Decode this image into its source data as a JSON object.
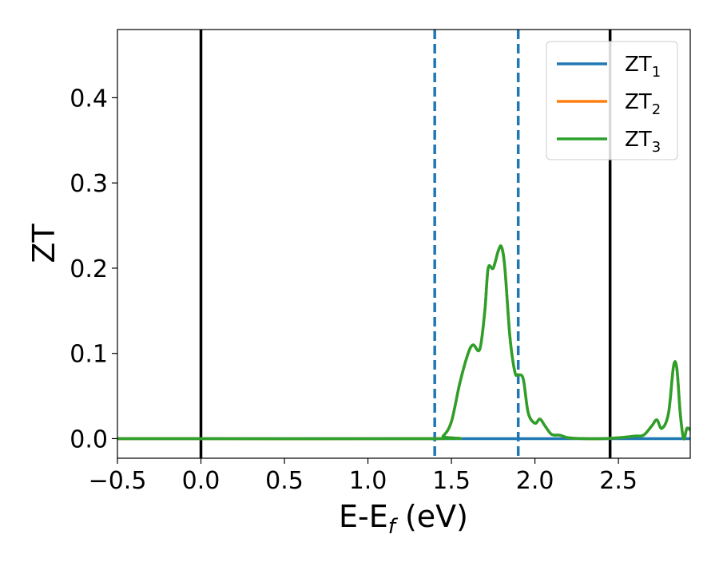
{
  "chart_data": {
    "type": "line",
    "title": "",
    "xlabel": "E-E",
    "xlabel_sub": "f",
    "xlabel_unit": " (eV)",
    "ylabel": "ZT",
    "xlim": [
      -0.5,
      2.93
    ],
    "ylim": [
      -0.023,
      0.48
    ],
    "xticks": [
      -0.5,
      0.0,
      0.5,
      1.0,
      1.5,
      2.0,
      2.5
    ],
    "xtick_labels": [
      "−0.5",
      "0.0",
      "0.5",
      "1.0",
      "1.5",
      "2.0",
      "2.5"
    ],
    "yticks": [
      0.0,
      0.1,
      0.2,
      0.3,
      0.4
    ],
    "ytick_labels": [
      "0.0",
      "0.1",
      "0.2",
      "0.3",
      "0.4"
    ],
    "grid": false,
    "legend_position": "top-right",
    "vlines": [
      {
        "x": 0.0,
        "style": "solid",
        "color": "#000000"
      },
      {
        "x": 2.45,
        "style": "solid",
        "color": "#000000"
      },
      {
        "x": 1.4,
        "style": "dashed",
        "color": "#1f77b4"
      },
      {
        "x": 1.9,
        "style": "dashed",
        "color": "#1f77b4"
      }
    ],
    "series": [
      {
        "name": "ZT",
        "sub": "1",
        "color": "#1f77b4",
        "x": [
          -0.5,
          2.93
        ],
        "y": [
          0.0,
          0.0
        ]
      },
      {
        "name": "ZT",
        "sub": "2",
        "color": "#ff7f0e",
        "x": [
          -0.5,
          1.4,
          1.45,
          1.5,
          1.55,
          1.6,
          1.63,
          1.67,
          1.7,
          1.72,
          1.75,
          1.78,
          1.8,
          1.82,
          1.85,
          1.88,
          1.9,
          1.93,
          1.96,
          2.0,
          2.03,
          2.06,
          2.1,
          2.15,
          2.2,
          2.3,
          2.4,
          2.5,
          2.6,
          2.65,
          2.7,
          2.73,
          2.76,
          2.8,
          2.83,
          2.85,
          2.87,
          2.89,
          2.91,
          2.93
        ],
        "y": [
          0.0,
          0.0,
          0.003,
          0.02,
          0.065,
          0.1,
          0.11,
          0.105,
          0.15,
          0.2,
          0.2,
          0.22,
          0.225,
          0.2,
          0.12,
          0.078,
          0.075,
          0.07,
          0.03,
          0.018,
          0.023,
          0.015,
          0.005,
          0.004,
          0.001,
          0.0,
          0.0,
          0.001,
          0.003,
          0.004,
          0.015,
          0.022,
          0.012,
          0.03,
          0.085,
          0.082,
          0.03,
          0.0,
          0.012,
          0.01
        ]
      },
      {
        "name": "ZT",
        "sub": "3",
        "color": "#2ca02c",
        "x": [
          -0.5,
          1.4,
          1.45,
          1.5,
          1.55,
          1.6,
          1.63,
          1.67,
          1.7,
          1.72,
          1.75,
          1.78,
          1.8,
          1.82,
          1.85,
          1.88,
          1.9,
          1.93,
          1.96,
          2.0,
          2.03,
          2.06,
          2.1,
          2.15,
          2.2,
          2.3,
          2.4,
          2.5,
          2.6,
          2.65,
          2.7,
          2.73,
          2.76,
          2.8,
          2.83,
          2.85,
          2.87,
          2.89,
          2.91,
          2.93
        ],
        "y": [
          0.0,
          0.0,
          0.003,
          0.02,
          0.065,
          0.1,
          0.11,
          0.105,
          0.15,
          0.2,
          0.2,
          0.22,
          0.225,
          0.2,
          0.12,
          0.078,
          0.075,
          0.07,
          0.03,
          0.018,
          0.023,
          0.015,
          0.005,
          0.004,
          0.001,
          0.0,
          0.0,
          0.001,
          0.003,
          0.004,
          0.015,
          0.022,
          0.012,
          0.03,
          0.085,
          0.082,
          0.03,
          0.0,
          0.012,
          0.01
        ]
      }
    ]
  }
}
